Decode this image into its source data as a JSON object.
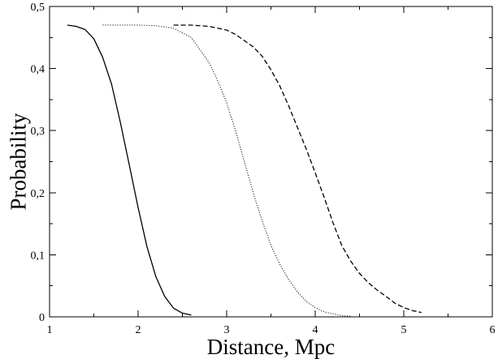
{
  "chart_data": {
    "type": "line",
    "title": "",
    "xlabel": "Distance, Mpc",
    "ylabel": "Probability",
    "xlim": [
      1,
      6
    ],
    "ylim": [
      0,
      0.5
    ],
    "x_ticks": [
      1,
      2,
      3,
      4,
      5,
      6
    ],
    "x_tick_labels": [
      "1",
      "2",
      "3",
      "4",
      "5",
      "6"
    ],
    "y_ticks": [
      0,
      0.1,
      0.2,
      0.3,
      0.4,
      0.5
    ],
    "y_tick_labels": [
      "0",
      "0,1",
      "0,2",
      "0,3",
      "0,4",
      "0,5"
    ],
    "grid": false,
    "legend": "none",
    "series": [
      {
        "style": "solid",
        "color": "#000000",
        "x": [
          1.2,
          1.3,
          1.4,
          1.5,
          1.6,
          1.7,
          1.8,
          1.9,
          2.0,
          2.1,
          2.2,
          2.3,
          2.4,
          2.5,
          2.6
        ],
        "y": [
          0.47,
          0.468,
          0.463,
          0.448,
          0.418,
          0.375,
          0.313,
          0.245,
          0.176,
          0.113,
          0.065,
          0.033,
          0.014,
          0.006,
          0.003
        ]
      },
      {
        "style": "dotted",
        "color": "#000000",
        "x": [
          1.6,
          1.8,
          2.0,
          2.2,
          2.4,
          2.6,
          2.8,
          2.9,
          3.0,
          3.1,
          3.2,
          3.3,
          3.4,
          3.5,
          3.6,
          3.7,
          3.8,
          3.9,
          4.0,
          4.1,
          4.2,
          4.3,
          4.4
        ],
        "y": [
          0.47,
          0.47,
          0.47,
          0.469,
          0.465,
          0.45,
          0.41,
          0.38,
          0.345,
          0.3,
          0.25,
          0.2,
          0.155,
          0.115,
          0.085,
          0.06,
          0.04,
          0.025,
          0.015,
          0.008,
          0.005,
          0.002,
          0.001
        ]
      },
      {
        "style": "dashed",
        "color": "#000000",
        "x": [
          2.4,
          2.6,
          2.8,
          3.0,
          3.1,
          3.2,
          3.3,
          3.4,
          3.5,
          3.6,
          3.7,
          3.8,
          3.9,
          4.0,
          4.1,
          4.2,
          4.3,
          4.4,
          4.5,
          4.6,
          4.7,
          4.8,
          4.9,
          5.0,
          5.1,
          5.2
        ],
        "y": [
          0.47,
          0.47,
          0.468,
          0.462,
          0.455,
          0.445,
          0.435,
          0.42,
          0.398,
          0.372,
          0.34,
          0.305,
          0.27,
          0.232,
          0.193,
          0.152,
          0.115,
          0.09,
          0.07,
          0.055,
          0.043,
          0.033,
          0.022,
          0.015,
          0.01,
          0.007
        ]
      }
    ]
  }
}
